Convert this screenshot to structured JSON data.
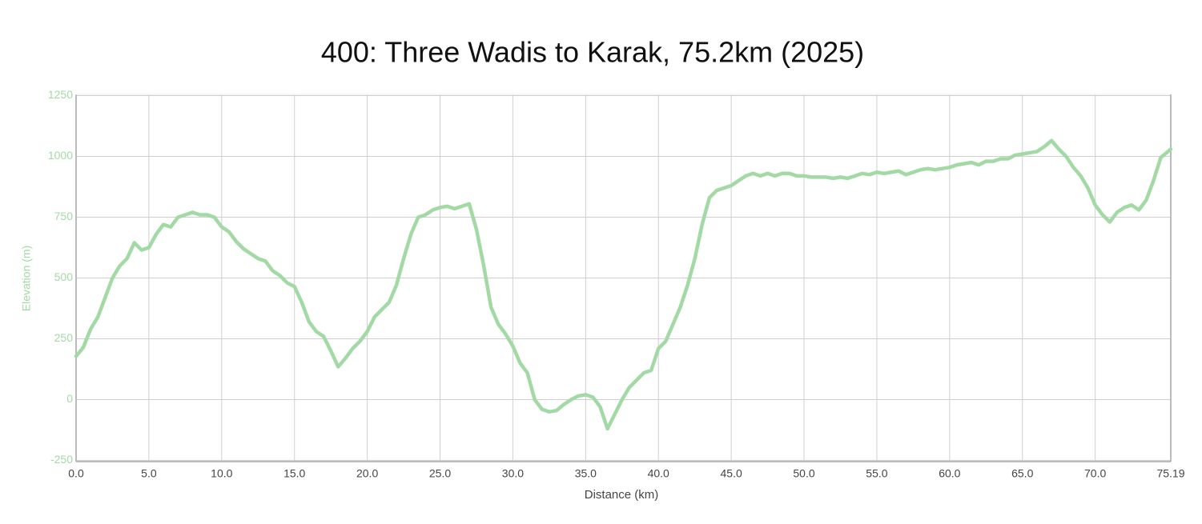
{
  "chart_data": {
    "type": "line",
    "title": "400: Three Wadis to Karak, 75.2km (2025)",
    "x_label": "Distance (km)",
    "y_label": "Elevation (m)",
    "xlim": [
      0,
      75.19
    ],
    "ylim": [
      -255,
      1255
    ],
    "xticks": [
      {
        "value": 0,
        "label": "0.0"
      },
      {
        "value": 5,
        "label": "5.0"
      },
      {
        "value": 10,
        "label": "10.0"
      },
      {
        "value": 15,
        "label": "15.0"
      },
      {
        "value": 20,
        "label": "20.0"
      },
      {
        "value": 25,
        "label": "25.0"
      },
      {
        "value": 30,
        "label": "30.0"
      },
      {
        "value": 35,
        "label": "35.0"
      },
      {
        "value": 40,
        "label": "40.0"
      },
      {
        "value": 45,
        "label": "45.0"
      },
      {
        "value": 50,
        "label": "50.0"
      },
      {
        "value": 55,
        "label": "55.0"
      },
      {
        "value": 60,
        "label": "60.0"
      },
      {
        "value": 65,
        "label": "65.0"
      },
      {
        "value": 70,
        "label": "70.0"
      },
      75.19
    ],
    "yticks": [
      -250,
      0,
      250,
      500,
      750,
      1000,
      1250
    ],
    "grid": true,
    "x": [
      0,
      0.5,
      1,
      1.5,
      2,
      2.5,
      3,
      3.5,
      4,
      4.5,
      5,
      5.5,
      6,
      6.5,
      7,
      7.5,
      8,
      8.5,
      9,
      9.5,
      10,
      10.5,
      11,
      11.5,
      12,
      12.5,
      13,
      13.5,
      14,
      14.5,
      15,
      15.5,
      16,
      16.5,
      17,
      17.5,
      18,
      18.5,
      19,
      19.5,
      20,
      20.5,
      21,
      21.5,
      22,
      22.5,
      23,
      23.5,
      24,
      24.5,
      25,
      25.5,
      26,
      26.5,
      27,
      27.5,
      28,
      28.5,
      29,
      29.5,
      30,
      30.5,
      31,
      31.5,
      32,
      32.5,
      33,
      33.5,
      34,
      34.5,
      35,
      35.5,
      36,
      36.5,
      37,
      37.5,
      38,
      38.5,
      39,
      39.5,
      40,
      40.5,
      41,
      41.5,
      42,
      42.5,
      43,
      43.5,
      44,
      44.5,
      45,
      45.5,
      46,
      46.5,
      47,
      47.5,
      48,
      48.5,
      49,
      49.5,
      50,
      50.5,
      51,
      51.5,
      52,
      52.5,
      53,
      53.5,
      54,
      54.5,
      55,
      55.5,
      56,
      56.5,
      57,
      57.5,
      58,
      58.5,
      59,
      59.5,
      60,
      60.5,
      61,
      61.5,
      62,
      62.5,
      63,
      63.5,
      64,
      64.5,
      65,
      65.5,
      66,
      66.5,
      67,
      67.5,
      68,
      68.5,
      69,
      69.5,
      70,
      70.5,
      71,
      71.5,
      72,
      72.5,
      73,
      73.5,
      74,
      74.5,
      75,
      75.19
    ],
    "series": [
      {
        "name": "Elevation",
        "color": "#a3d9a5",
        "values": [
          178,
          215,
          290,
          340,
          420,
          500,
          550,
          580,
          645,
          615,
          625,
          680,
          720,
          710,
          750,
          760,
          770,
          760,
          760,
          750,
          710,
          690,
          650,
          620,
          600,
          580,
          570,
          530,
          510,
          480,
          465,
          400,
          320,
          280,
          260,
          200,
          135,
          170,
          210,
          240,
          280,
          340,
          370,
          400,
          470,
          580,
          680,
          750,
          760,
          780,
          790,
          795,
          785,
          795,
          805,
          700,
          550,
          380,
          310,
          270,
          220,
          150,
          110,
          0,
          -40,
          -50,
          -45,
          -20,
          0,
          15,
          20,
          10,
          -30,
          -120,
          -60,
          0,
          50,
          80,
          110,
          120,
          210,
          240,
          310,
          380,
          470,
          580,
          720,
          830,
          860,
          870,
          880,
          900,
          920,
          930,
          920,
          930,
          920,
          930,
          930,
          920,
          920,
          915,
          915,
          915,
          910,
          915,
          910,
          920,
          930,
          925,
          935,
          930,
          935,
          940,
          925,
          935,
          945,
          950,
          945,
          950,
          955,
          965,
          970,
          975,
          965,
          980,
          980,
          990,
          990,
          1005,
          1010,
          1015,
          1020,
          1040,
          1065,
          1030,
          1000,
          955,
          920,
          870,
          800,
          760,
          730,
          770,
          790,
          800,
          780,
          820,
          900,
          995,
          1020,
          1030
        ]
      }
    ]
  }
}
